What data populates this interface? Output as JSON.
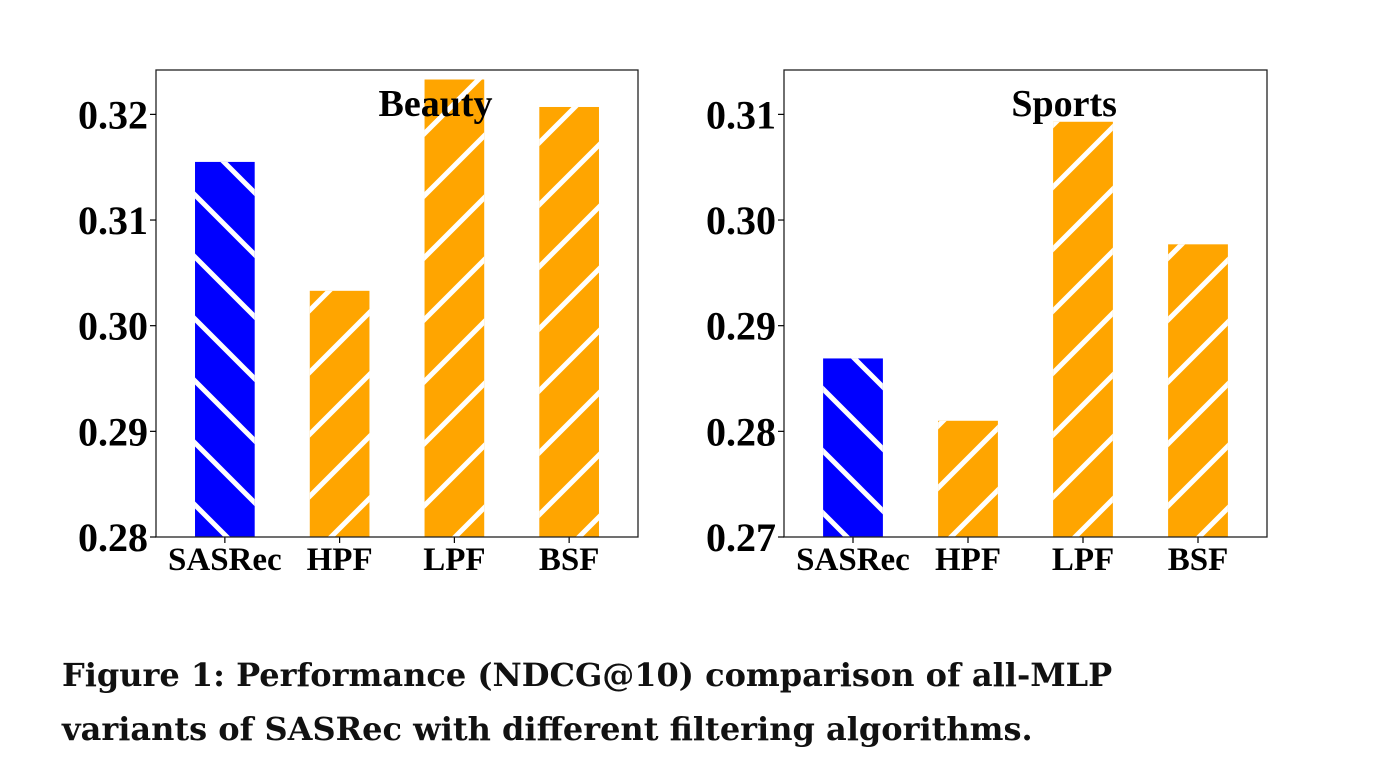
{
  "chart_data": [
    {
      "type": "bar",
      "title": "Beauty",
      "categories": [
        "SASRec",
        "HPF",
        "LPF",
        "BSF"
      ],
      "values": [
        0.3155,
        0.3033,
        0.3233,
        0.3207
      ],
      "ylim": [
        0.28,
        0.3242
      ],
      "yticks": [
        "0.28",
        "0.29",
        "0.30",
        "0.31",
        "0.32"
      ],
      "xlabel": "",
      "ylabel": "",
      "bar_colors": [
        "#0000ff",
        "#ffa500",
        "#ffa500",
        "#ffa500"
      ],
      "hatch": [
        "backslash",
        "slash",
        "slash",
        "slash"
      ],
      "grid": false,
      "legend": "none"
    },
    {
      "type": "bar",
      "title": "Sports",
      "categories": [
        "SASRec",
        "HPF",
        "LPF",
        "BSF"
      ],
      "values": [
        0.2869,
        0.281,
        0.3093,
        0.2977
      ],
      "ylim": [
        0.27,
        0.3142
      ],
      "yticks": [
        "0.27",
        "0.28",
        "0.29",
        "0.30",
        "0.31"
      ],
      "xlabel": "",
      "ylabel": "",
      "bar_colors": [
        "#0000ff",
        "#ffa500",
        "#ffa500",
        "#ffa500"
      ],
      "hatch": [
        "backslash",
        "slash",
        "slash",
        "slash"
      ],
      "grid": false,
      "legend": "none"
    }
  ],
  "caption": {
    "line1": "Figure 1: Performance (NDCG@10) comparison of all-MLP",
    "line2": "variants of SASRec with different filtering algorithms."
  }
}
